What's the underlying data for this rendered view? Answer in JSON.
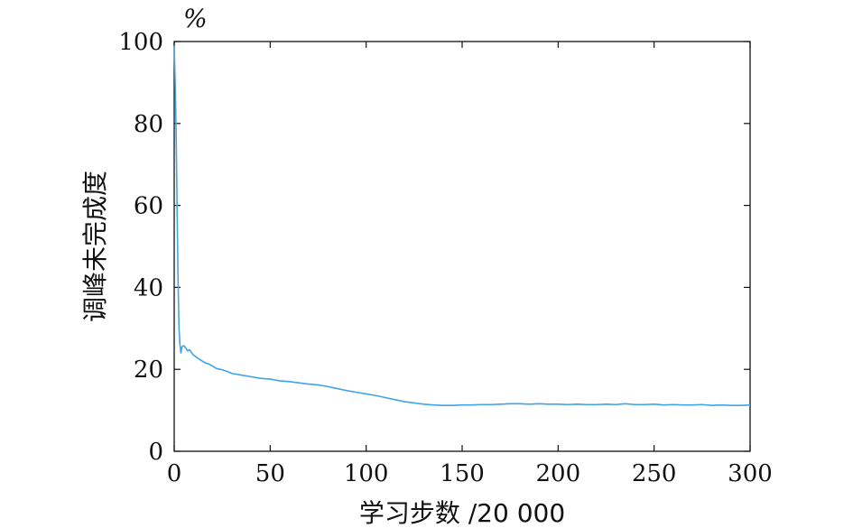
{
  "chart_data": {
    "type": "line",
    "xlabel": "学习步数 /20 000",
    "ylabel": "调峰未完成度",
    "yunit": "%",
    "xlim": [
      0,
      300
    ],
    "ylim": [
      0,
      100
    ],
    "xticks": [
      "0",
      "50",
      "100",
      "150",
      "200",
      "250",
      "300"
    ],
    "yticks": [
      "0",
      "20",
      "40",
      "60",
      "80",
      "100"
    ],
    "grid": false,
    "series": [
      {
        "color": "#3da5e8",
        "x": [
          0,
          0.5,
          1,
          1.5,
          2,
          2.5,
          3,
          3.5,
          4,
          5,
          6,
          7,
          8,
          9,
          10,
          12,
          14,
          16,
          18,
          20,
          22,
          25,
          28,
          30,
          35,
          40,
          45,
          50,
          55,
          60,
          65,
          70,
          75,
          80,
          85,
          90,
          95,
          100,
          105,
          110,
          115,
          120,
          125,
          130,
          135,
          140,
          145,
          150,
          155,
          160,
          165,
          170,
          175,
          180,
          185,
          190,
          195,
          200,
          205,
          210,
          215,
          220,
          225,
          230,
          235,
          240,
          245,
          250,
          255,
          260,
          265,
          270,
          275,
          280,
          285,
          290,
          295,
          300
        ],
        "y": [
          99,
          90,
          78,
          60,
          42,
          30,
          26,
          24,
          25.5,
          25.8,
          25.2,
          24.5,
          24.8,
          24.1,
          23.5,
          22.8,
          22.2,
          21.6,
          21.3,
          20.8,
          20.2,
          19.9,
          19.4,
          19.0,
          18.6,
          18.2,
          17.8,
          17.6,
          17.2,
          17.0,
          16.7,
          16.4,
          16.2,
          15.8,
          15.3,
          14.8,
          14.4,
          14.0,
          13.6,
          13.1,
          12.6,
          12.1,
          11.8,
          11.5,
          11.3,
          11.2,
          11.2,
          11.3,
          11.3,
          11.4,
          11.4,
          11.5,
          11.6,
          11.6,
          11.5,
          11.6,
          11.5,
          11.5,
          11.4,
          11.5,
          11.4,
          11.4,
          11.5,
          11.4,
          11.6,
          11.4,
          11.4,
          11.5,
          11.3,
          11.4,
          11.3,
          11.3,
          11.4,
          11.2,
          11.3,
          11.2,
          11.2,
          11.3
        ]
      }
    ]
  }
}
